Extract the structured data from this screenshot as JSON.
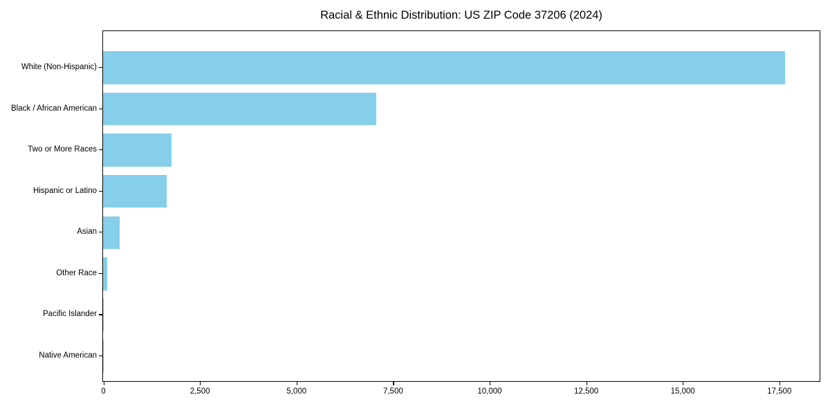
{
  "title": "Racial & Ethnic Distribution: US ZIP Code 37206 (2024)",
  "bar_color": "#87CEEB",
  "chart_data": {
    "type": "bar",
    "orientation": "horizontal",
    "title": "Racial & Ethnic Distribution: US ZIP Code 37206 (2024)",
    "categories": [
      "White (Non-Hispanic)",
      "Black / African American",
      "Two or More Races",
      "Hispanic or Latino",
      "Asian",
      "Other Race",
      "Pacific Islander",
      "Native American"
    ],
    "values": [
      17650,
      7080,
      1770,
      1640,
      430,
      100,
      20,
      10
    ],
    "xlabel": "",
    "ylabel": "",
    "xlim": [
      0,
      18533
    ],
    "x_ticks": [
      0,
      2500,
      5000,
      7500,
      10000,
      12500,
      15000,
      17500
    ],
    "x_tick_labels": [
      "0",
      "2,500",
      "5,000",
      "7,500",
      "10,000",
      "12,500",
      "15,000",
      "17,500"
    ],
    "grid": false,
    "legend": null,
    "bar_color": "#87CEEB",
    "background_color": "#ffffff",
    "spine_color": "#000000"
  }
}
